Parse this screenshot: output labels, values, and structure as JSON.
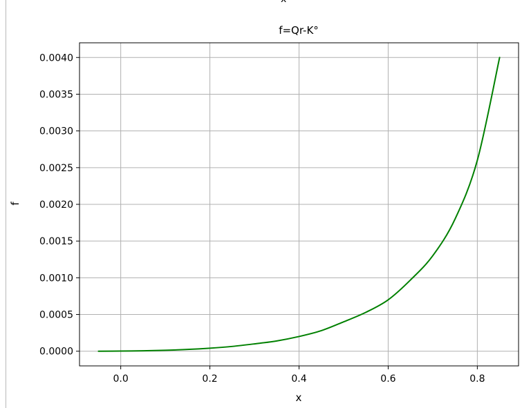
{
  "top_fragment": "x",
  "chart_data": {
    "type": "line",
    "title": "f=Qr-K°",
    "xlabel": "x",
    "ylabel": "f",
    "xlim": [
      -0.0925,
      0.8925
    ],
    "ylim": [
      -0.0002,
      0.0042
    ],
    "x_ticks": [
      0.0,
      0.2,
      0.4,
      0.6,
      0.8
    ],
    "x_tick_labels": [
      "0.0",
      "0.2",
      "0.4",
      "0.6",
      "0.8"
    ],
    "y_ticks": [
      0.0,
      0.0005,
      0.001,
      0.0015,
      0.002,
      0.0025,
      0.003,
      0.0035,
      0.004
    ],
    "y_tick_labels": [
      "0.0000",
      "0.0005",
      "0.0010",
      "0.0015",
      "0.0020",
      "0.0025",
      "0.0030",
      "0.0035",
      "0.0040"
    ],
    "grid": true,
    "series": [
      {
        "color": "#008000",
        "x": [
          -0.05,
          0.0,
          0.05,
          0.1,
          0.15,
          0.2,
          0.25,
          0.3,
          0.35,
          0.4,
          0.45,
          0.5,
          0.55,
          0.6,
          0.65,
          0.7,
          0.75,
          0.8,
          0.85
        ],
        "y": [
          0.0,
          2e-06,
          6e-06,
          1.3e-05,
          2.4e-05,
          4.1e-05,
          6.5e-05,
          0.0001,
          0.00014,
          0.0002,
          0.00028,
          0.0004,
          0.00053,
          0.0007,
          0.00097,
          0.0013,
          0.0018,
          0.0026,
          0.004
        ]
      }
    ]
  }
}
